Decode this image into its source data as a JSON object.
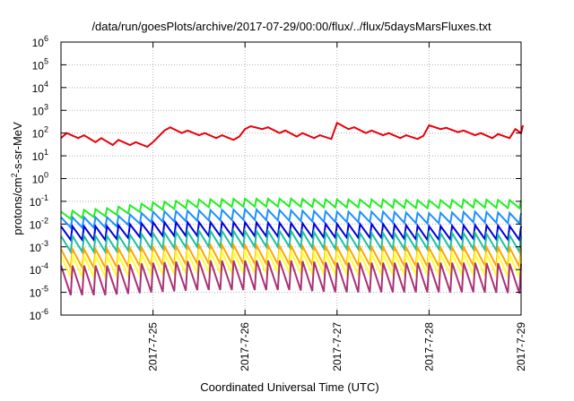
{
  "chart_data": {
    "type": "line",
    "title": "/data/run/goesPlots/archive/2017-07-29/00:00/flux/../flux/5daysMarsFluxes.txt",
    "xlabel": "Coordinated Universal Time (UTC)",
    "ylabel": {
      "base": "protons/cm",
      "sup": "2",
      "rest": "-s-sr-MeV"
    },
    "y_scale": "log",
    "ylim": [
      1e-06,
      1000000.0
    ],
    "xlim": [
      "2017-07-24T00:00",
      "2017-07-29T00:00"
    ],
    "grid": true,
    "x_ticks": [
      {
        "date": "2017-07-25T00:00",
        "label": "2017-7-25"
      },
      {
        "date": "2017-07-26T00:00",
        "label": "2017-7-26"
      },
      {
        "date": "2017-07-27T00:00",
        "label": "2017-7-27"
      },
      {
        "date": "2017-07-28T00:00",
        "label": "2017-7-28"
      },
      {
        "date": "2017-07-29T00:00",
        "label": "2017-7-29"
      }
    ],
    "y_ticks": [
      {
        "value": 1e-06,
        "exp": "-6"
      },
      {
        "value": 1e-05,
        "exp": "-5"
      },
      {
        "value": 0.0001,
        "exp": "-4"
      },
      {
        "value": 0.001,
        "exp": "-3"
      },
      {
        "value": 0.01,
        "exp": "-2"
      },
      {
        "value": 0.1,
        "exp": "-1"
      },
      {
        "value": 1,
        "exp": "0"
      },
      {
        "value": 10,
        "exp": "1"
      },
      {
        "value": 100,
        "exp": "2"
      },
      {
        "value": 1000,
        "exp": "3"
      },
      {
        "value": 10000,
        "exp": "4"
      },
      {
        "value": 100000,
        "exp": "5"
      },
      {
        "value": 1000000,
        "exp": "6"
      }
    ],
    "series": [
      {
        "color": "#e8000b",
        "points": [
          [
            "2017-07-24T00:00",
            60
          ],
          [
            "2017-07-24T01:30",
            100
          ],
          [
            "2017-07-24T04:30",
            60
          ],
          [
            "2017-07-24T06:00",
            80
          ],
          [
            "2017-07-24T09:00",
            40
          ],
          [
            "2017-07-24T10:30",
            60
          ],
          [
            "2017-07-24T13:30",
            30
          ],
          [
            "2017-07-24T15:00",
            50
          ],
          [
            "2017-07-24T18:00",
            30
          ],
          [
            "2017-07-24T19:30",
            40
          ],
          [
            "2017-07-24T22:30",
            25
          ],
          [
            "2017-07-25T00:00",
            40
          ],
          [
            "2017-07-25T03:00",
            130
          ],
          [
            "2017-07-25T04:30",
            180
          ],
          [
            "2017-07-25T07:30",
            100
          ],
          [
            "2017-07-25T09:00",
            130
          ],
          [
            "2017-07-25T12:00",
            80
          ],
          [
            "2017-07-25T13:30",
            100
          ],
          [
            "2017-07-25T16:30",
            60
          ],
          [
            "2017-07-25T18:00",
            80
          ],
          [
            "2017-07-25T21:00",
            50
          ],
          [
            "2017-07-25T22:30",
            70
          ],
          [
            "2017-07-26T00:00",
            150
          ],
          [
            "2017-07-26T01:30",
            200
          ],
          [
            "2017-07-26T04:30",
            150
          ],
          [
            "2017-07-26T06:00",
            180
          ],
          [
            "2017-07-26T09:00",
            100
          ],
          [
            "2017-07-26T10:30",
            130
          ],
          [
            "2017-07-26T13:30",
            70
          ],
          [
            "2017-07-26T15:00",
            100
          ],
          [
            "2017-07-26T18:00",
            60
          ],
          [
            "2017-07-26T19:30",
            80
          ],
          [
            "2017-07-26T22:30",
            55
          ],
          [
            "2017-07-27T00:00",
            280
          ],
          [
            "2017-07-27T03:00",
            150
          ],
          [
            "2017-07-27T04:30",
            180
          ],
          [
            "2017-07-27T07:30",
            100
          ],
          [
            "2017-07-27T09:00",
            130
          ],
          [
            "2017-07-27T12:00",
            80
          ],
          [
            "2017-07-27T13:30",
            100
          ],
          [
            "2017-07-27T16:30",
            60
          ],
          [
            "2017-07-27T18:00",
            80
          ],
          [
            "2017-07-27T21:00",
            55
          ],
          [
            "2017-07-27T22:30",
            75
          ],
          [
            "2017-07-28T00:00",
            220
          ],
          [
            "2017-07-28T03:00",
            150
          ],
          [
            "2017-07-28T04:30",
            170
          ],
          [
            "2017-07-28T07:30",
            110
          ],
          [
            "2017-07-28T09:00",
            130
          ],
          [
            "2017-07-28T12:00",
            80
          ],
          [
            "2017-07-28T13:30",
            100
          ],
          [
            "2017-07-28T16:30",
            60
          ],
          [
            "2017-07-28T18:00",
            90
          ],
          [
            "2017-07-28T21:00",
            60
          ],
          [
            "2017-07-28T22:30",
            150
          ],
          [
            "2017-07-29T00:00",
            100
          ],
          [
            "2017-07-29T00:30",
            220
          ]
        ]
      },
      {
        "color": "#22ee22",
        "zig": {
          "start": "2017-07-24T00:00",
          "end": "2017-07-29T00:00",
          "teeth": 40,
          "high": [
            0.035,
            0.05,
            0.09,
            0.12,
            0.13,
            0.13,
            0.12,
            0.12,
            0.11,
            0.12,
            0.11
          ],
          "low": 0.45
        }
      },
      {
        "color": "#1e90ff",
        "zig": {
          "start": "2017-07-24T00:00",
          "end": "2017-07-29T00:00",
          "teeth": 40,
          "high": [
            0.02,
            0.02,
            0.035,
            0.04,
            0.045,
            0.04,
            0.035,
            0.035,
            0.03,
            0.035,
            0.03
          ],
          "low": 0.35
        }
      },
      {
        "color": "#0000dd",
        "zig": {
          "start": "2017-07-24T00:00",
          "end": "2017-07-29T00:00",
          "teeth": 40,
          "high": [
            0.008,
            0.008,
            0.012,
            0.012,
            0.012,
            0.011,
            0.01,
            0.01,
            0.008,
            0.009,
            0.008
          ],
          "low": 0.25
        }
      },
      {
        "color": "#20c0a0",
        "zig": {
          "start": "2017-07-24T00:00",
          "end": "2017-07-29T00:00",
          "teeth": 40,
          "high": [
            0.003,
            0.003,
            0.004,
            0.005,
            0.005,
            0.005,
            0.004,
            0.004,
            0.004,
            0.004,
            0.003
          ],
          "low": 0.2
        }
      },
      {
        "color": "#ffa500",
        "zig": {
          "start": "2017-07-24T00:00",
          "end": "2017-07-29T00:00",
          "teeth": 40,
          "high": [
            0.0008,
            0.0008,
            0.001,
            0.0012,
            0.0012,
            0.0011,
            0.001,
            0.001,
            0.0009,
            0.001,
            0.0009
          ],
          "low": 0.15
        }
      },
      {
        "color": "#ffff33",
        "zig": {
          "start": "2017-07-24T00:00",
          "end": "2017-07-29T00:00",
          "teeth": 40,
          "high": [
            0.0004,
            0.0004,
            0.0005,
            0.0006,
            0.0006,
            0.0006,
            0.0005,
            0.0005,
            0.0005,
            0.0005,
            0.0004
          ],
          "low": 0.12
        }
      },
      {
        "color": "#aa3377",
        "zig": {
          "start": "2017-07-24T00:00",
          "end": "2017-07-29T00:00",
          "teeth": 40,
          "high": [
            0.00015,
            0.00015,
            0.0002,
            0.00025,
            0.00025,
            0.00025,
            0.0002,
            0.0002,
            0.0002,
            0.0002,
            0.00018
          ],
          "low": 0.05
        }
      }
    ]
  }
}
